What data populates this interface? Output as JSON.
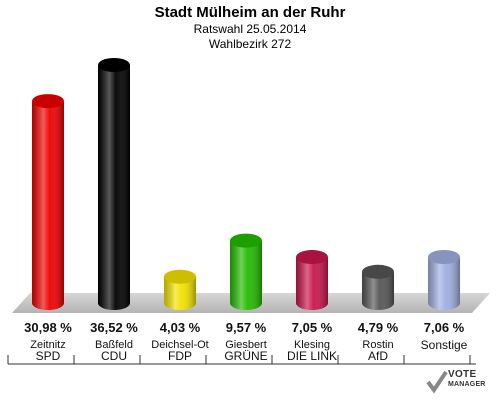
{
  "chart_data": {
    "type": "bar",
    "title": "Stadt Mülheim an der Ruhr",
    "subtitle_1": "Ratswahl 25.05.2014",
    "subtitle_2": "Wahlbezirk 272",
    "unit": "%",
    "ylim": [
      0,
      40
    ],
    "categories": [
      {
        "candidate": "Zeitnitz",
        "party": "SPD",
        "value": 30.98,
        "label": "30,98 %",
        "color": "#ee0000"
      },
      {
        "candidate": "Baßfeld",
        "party": "CDU",
        "value": 36.52,
        "label": "36,52 %",
        "color": "#000000"
      },
      {
        "candidate": "Deichsel-Ot",
        "party": "FDP",
        "value": 4.03,
        "label": "4,03 %",
        "color": "#f2e000"
      },
      {
        "candidate": "Giesbert",
        "party": "GRÜNE",
        "value": 9.57,
        "label": "9,57 %",
        "color": "#22bb00"
      },
      {
        "candidate": "Klesing",
        "party": "DIE LINK",
        "value": 7.05,
        "label": "7,05 %",
        "color": "#c8154a"
      },
      {
        "candidate": "Rostin",
        "party": "AfD",
        "value": 4.79,
        "label": "4,79 %",
        "color": "#555555"
      },
      {
        "candidate": "",
        "party": "Sonstige",
        "value": 7.06,
        "label": "7,06 %",
        "color": "#9eaee0"
      }
    ]
  },
  "logo": {
    "line1": "VOTE",
    "line2": "MANAGER"
  }
}
